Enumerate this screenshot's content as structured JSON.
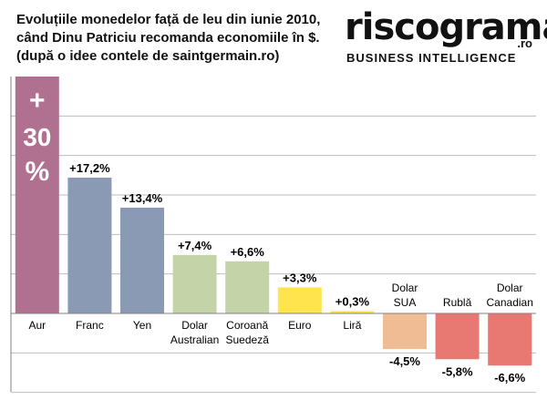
{
  "title_lines": [
    "Evoluțiile monedelor față de leu din iunie 2010,",
    "când Dinu Patriciu recomanda economiile în $.",
    "(după o idee contele de saintgermain.ro)"
  ],
  "logo": {
    "word": "riscograma",
    "suffix": ".ro",
    "tagline": "BUSINESS INTELLIGENCE"
  },
  "chart_data": {
    "type": "bar",
    "title": "",
    "xlabel": "",
    "ylabel": "",
    "ylim": [
      -12,
      30
    ],
    "grid": true,
    "categories": [
      [
        "Aur"
      ],
      [
        "Franc"
      ],
      [
        "Yen"
      ],
      [
        "Dolar",
        "Australian"
      ],
      [
        "Coroană",
        "Suedeză"
      ],
      [
        "Euro"
      ],
      [
        "Liră"
      ],
      [
        "Dolar",
        "SUA"
      ],
      [
        "Rublă"
      ],
      [
        "Dolar",
        "Canadian"
      ]
    ],
    "values": [
      30,
      17.2,
      13.4,
      7.4,
      6.6,
      3.3,
      0.3,
      -4.5,
      -5.8,
      -6.6
    ],
    "data_labels": [
      "+ 30 %",
      "+17,2%",
      "+13,4%",
      "+7,4%",
      "+6,6%",
      "+3,3%",
      "+0,3%",
      "-4,5%",
      "-5,8%",
      "-6,6%"
    ],
    "colors": [
      "#b07090",
      "#8a9ab5",
      "#8a9ab5",
      "#c4d4a8",
      "#c4d4a8",
      "#ffe44d",
      "#ffe44d",
      "#f0bc94",
      "#e87872",
      "#e87872"
    ]
  }
}
